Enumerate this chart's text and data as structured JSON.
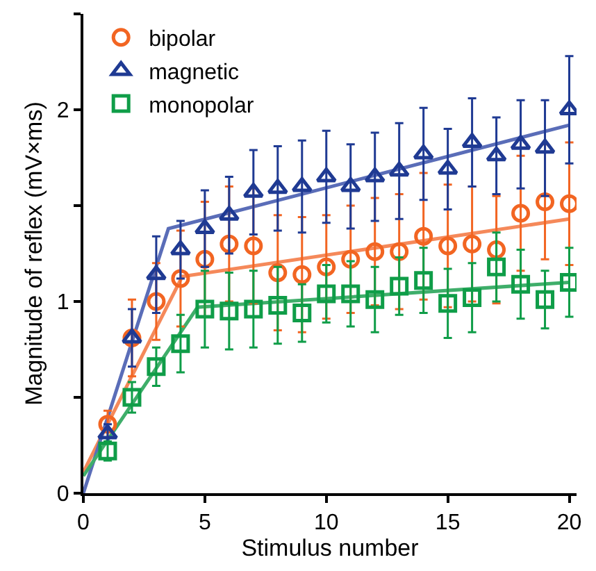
{
  "chart_data": {
    "type": "scatter",
    "xlabel": "Stimulus number",
    "ylabel": "Magnitude of reflex (mV×ms)",
    "x": [
      1,
      2,
      3,
      4,
      5,
      6,
      7,
      8,
      9,
      10,
      11,
      12,
      13,
      14,
      15,
      16,
      17,
      18,
      19,
      20
    ],
    "xlim": [
      0,
      20.3
    ],
    "xticks": [
      0,
      5,
      10,
      15,
      20
    ],
    "ylim": [
      0,
      2.5
    ],
    "yticks": [
      0,
      {
        "value": 0.5,
        "label": null
      },
      1,
      {
        "value": 1.5,
        "label": null
      },
      2,
      {
        "value": 2.5,
        "label": null
      }
    ],
    "legend": "top left",
    "series": [
      {
        "type": "line",
        "marker": "none",
        "color": "#f5895a",
        "x": [
          0,
          4.07,
          20
        ],
        "values": [
          0.11,
          1.13,
          1.43
        ]
      },
      {
        "type": "line",
        "marker": "none",
        "color": "#5a6db8",
        "x": [
          0,
          3.5,
          20
        ],
        "values": [
          0,
          1.38,
          1.92
        ]
      },
      {
        "type": "line",
        "marker": "none",
        "color": "#3fae6a",
        "x": [
          0,
          4.7,
          20
        ],
        "values": [
          0.09,
          0.97,
          1.1
        ]
      },
      {
        "name": "bipolar",
        "marker": "circle",
        "color": "#f26522",
        "values": [
          0.36,
          0.81,
          1.0,
          1.12,
          1.22,
          1.3,
          1.29,
          1.15,
          1.14,
          1.18,
          1.22,
          1.26,
          1.26,
          1.34,
          1.29,
          1.3,
          1.27,
          1.46,
          1.52,
          1.51
        ],
        "errors": [
          0.07,
          0.2,
          0.2,
          0.25,
          0.3,
          0.3,
          0.3,
          0.3,
          0.3,
          0.27,
          0.28,
          0.28,
          0.3,
          0.33,
          0.32,
          0.3,
          0.28,
          0.3,
          0.3,
          0.32
        ]
      },
      {
        "name": "magnetic",
        "marker": "triangle",
        "color": "#1f3a93",
        "values": [
          0.31,
          0.81,
          1.14,
          1.27,
          1.38,
          1.45,
          1.57,
          1.59,
          1.6,
          1.65,
          1.6,
          1.65,
          1.68,
          1.77,
          1.69,
          1.83,
          1.76,
          1.82,
          1.8,
          2.0
        ],
        "errors": [
          0.05,
          0.15,
          0.2,
          0.15,
          0.2,
          0.2,
          0.22,
          0.22,
          0.24,
          0.24,
          0.22,
          0.23,
          0.25,
          0.24,
          0.21,
          0.23,
          0.2,
          0.23,
          0.25,
          0.28
        ]
      },
      {
        "name": "monopolar",
        "marker": "square",
        "color": "#0f9d48",
        "values": [
          0.22,
          0.5,
          0.66,
          0.78,
          0.96,
          0.95,
          0.96,
          0.98,
          0.94,
          1.04,
          1.04,
          1.01,
          1.08,
          1.11,
          0.99,
          1.02,
          1.18,
          1.09,
          1.01,
          1.1
        ],
        "errors": [
          0.05,
          0.08,
          0.1,
          0.15,
          0.2,
          0.2,
          0.2,
          0.2,
          0.15,
          0.15,
          0.17,
          0.17,
          0.15,
          0.17,
          0.18,
          0.18,
          0.18,
          0.18,
          0.15,
          0.18
        ]
      }
    ]
  }
}
